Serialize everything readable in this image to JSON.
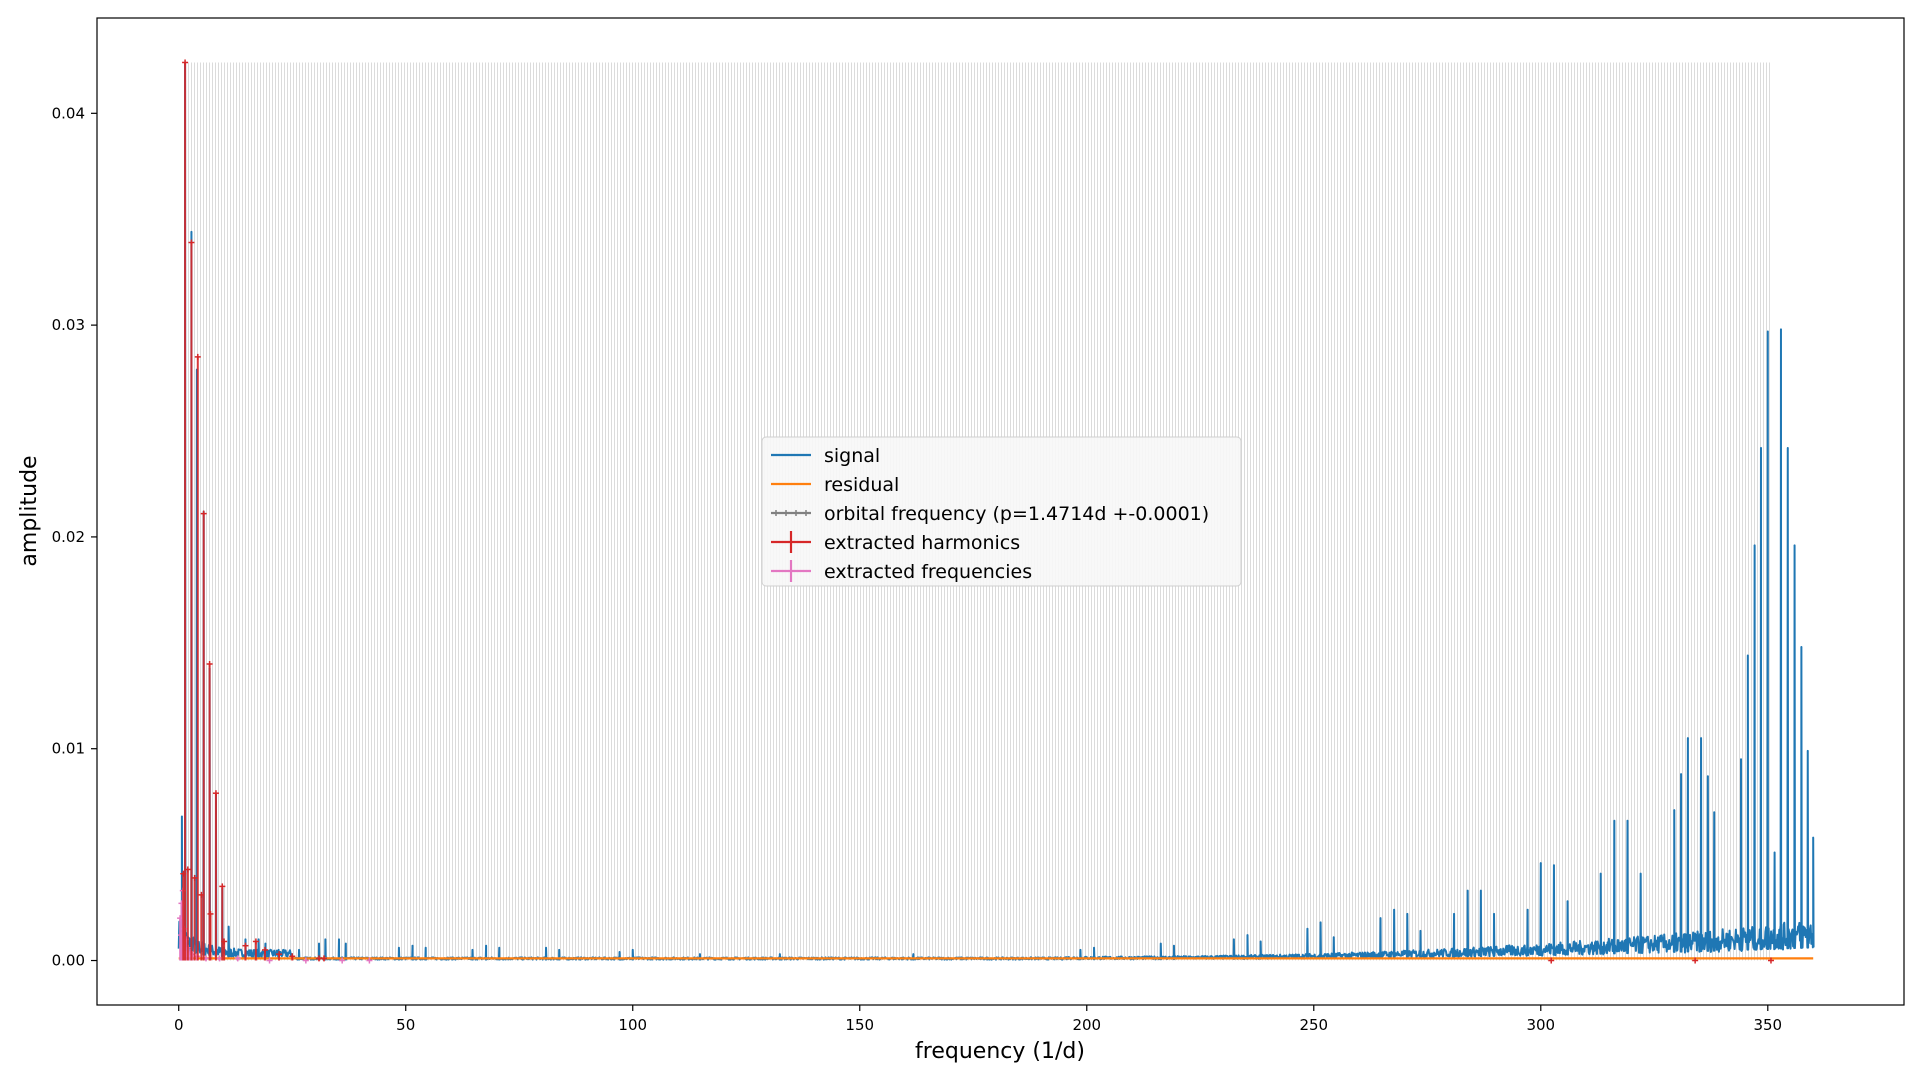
{
  "chart_data": {
    "type": "line",
    "title": "",
    "xlabel": "frequency (1/d)",
    "ylabel": "amplitude",
    "xlim": [
      -18,
      380
    ],
    "ylim": [
      -0.0021,
      0.0445
    ],
    "xticks": [
      0,
      50,
      100,
      150,
      200,
      250,
      300,
      350
    ],
    "yticks": [
      0.0,
      0.01,
      0.02,
      0.03,
      0.04
    ],
    "ytick_labels": [
      "0.00",
      "0.01",
      "0.02",
      "0.03",
      "0.04"
    ],
    "grid": false,
    "legend_position": "center",
    "orbital_band": {
      "x_range": [
        1.5,
        350.7
      ],
      "y_top": 0.0424,
      "color": "#bdbdbd"
    },
    "colors": {
      "signal": "#1f77b4",
      "residual": "#ff7f0e",
      "orbital": "#808080",
      "harmonics": "#d62728",
      "frequencies": "#e377c2"
    },
    "series": [
      {
        "name": "signal",
        "kind": "spectrum",
        "x_range": [
          0,
          360
        ],
        "peaks": [
          [
            0.7,
            0.0068
          ],
          [
            1.4,
            0.0424
          ],
          [
            2.8,
            0.0344
          ],
          [
            4.0,
            0.0279
          ],
          [
            5.5,
            0.0212
          ],
          [
            6.8,
            0.0138
          ],
          [
            8.2,
            0.0079
          ],
          [
            9.6,
            0.0034
          ],
          [
            11.0,
            0.0016
          ],
          [
            14.7,
            0.001
          ],
          [
            17.6,
            0.001
          ],
          [
            19.1,
            0.0008
          ],
          [
            22.0,
            0.0005
          ],
          [
            26.5,
            0.0005
          ],
          [
            30.9,
            0.0008
          ],
          [
            32.3,
            0.001
          ],
          [
            35.3,
            0.001
          ],
          [
            36.8,
            0.0008
          ],
          [
            48.5,
            0.0006
          ],
          [
            51.5,
            0.0007
          ],
          [
            54.4,
            0.0006
          ],
          [
            64.7,
            0.0005
          ],
          [
            67.7,
            0.0007
          ],
          [
            70.6,
            0.0006
          ],
          [
            80.9,
            0.0006
          ],
          [
            83.8,
            0.0005
          ],
          [
            97.1,
            0.0004
          ],
          [
            100.0,
            0.0005
          ],
          [
            114.8,
            0.0003
          ],
          [
            132.4,
            0.0003
          ],
          [
            161.8,
            0.0003
          ],
          [
            198.6,
            0.0005
          ],
          [
            201.6,
            0.0006
          ],
          [
            216.3,
            0.0008
          ],
          [
            219.2,
            0.0007
          ],
          [
            232.4,
            0.001
          ],
          [
            235.4,
            0.0012
          ],
          [
            238.3,
            0.0009
          ],
          [
            248.6,
            0.0015
          ],
          [
            251.5,
            0.0018
          ],
          [
            254.4,
            0.0011
          ],
          [
            264.7,
            0.002
          ],
          [
            267.7,
            0.0024
          ],
          [
            270.6,
            0.0022
          ],
          [
            273.5,
            0.0014
          ],
          [
            280.9,
            0.0022
          ],
          [
            283.9,
            0.0033
          ],
          [
            286.8,
            0.0033
          ],
          [
            289.7,
            0.0022
          ],
          [
            297.1,
            0.0024
          ],
          [
            300.0,
            0.0046
          ],
          [
            302.9,
            0.0045
          ],
          [
            305.9,
            0.0028
          ],
          [
            313.2,
            0.0041
          ],
          [
            316.2,
            0.0066
          ],
          [
            319.1,
            0.0066
          ],
          [
            322.0,
            0.0041
          ],
          [
            329.4,
            0.0071
          ],
          [
            330.9,
            0.0088
          ],
          [
            332.4,
            0.0105
          ],
          [
            335.3,
            0.0105
          ],
          [
            336.8,
            0.0087
          ],
          [
            338.2,
            0.007
          ],
          [
            344.1,
            0.0095
          ],
          [
            345.6,
            0.0144
          ],
          [
            347.1,
            0.0196
          ],
          [
            348.5,
            0.0242
          ],
          [
            350.0,
            0.0297
          ],
          [
            351.5,
            0.0051
          ],
          [
            352.9,
            0.0298
          ],
          [
            354.4,
            0.0242
          ],
          [
            355.9,
            0.0196
          ],
          [
            357.4,
            0.0148
          ],
          [
            358.8,
            0.0099
          ],
          [
            360.0,
            0.0058
          ]
        ]
      },
      {
        "name": "residual",
        "kind": "flat",
        "x_range": [
          0,
          360
        ],
        "level": 0.0001
      },
      {
        "name": "orbital frequency (p=1.4714d +-0.0001)",
        "kind": "band"
      },
      {
        "name": "extracted harmonics",
        "kind": "markers",
        "points": [
          [
            1.4,
            0.0424
          ],
          [
            2.8,
            0.0339
          ],
          [
            4.2,
            0.0285
          ],
          [
            5.5,
            0.0211
          ],
          [
            6.8,
            0.014
          ],
          [
            8.2,
            0.0079
          ],
          [
            9.6,
            0.0035
          ],
          [
            1.0,
            0.0041
          ],
          [
            2.0,
            0.0043
          ],
          [
            3.5,
            0.0039
          ],
          [
            5.0,
            0.0031
          ],
          [
            7.0,
            0.0022
          ],
          [
            10.0,
            0.0009
          ],
          [
            14.7,
            0.0007
          ],
          [
            17.0,
            0.0009
          ],
          [
            19.0,
            0.0005
          ],
          [
            22.1,
            0.0003
          ],
          [
            25.0,
            0.0002
          ],
          [
            30.9,
            0.0001
          ],
          [
            32.0,
            0.0001
          ],
          [
            302.3,
            0.0
          ],
          [
            334.0,
            0.0
          ],
          [
            350.7,
            0.0
          ]
        ]
      },
      {
        "name": "extracted frequencies",
        "kind": "markers",
        "points": [
          [
            0.3,
            0.002
          ],
          [
            0.6,
            0.0027
          ],
          [
            0.9,
            0.0033
          ],
          [
            0.5,
            0.0012
          ],
          [
            1.2,
            0.0015
          ],
          [
            1.6,
            0.001
          ],
          [
            0.8,
            0.0007
          ],
          [
            2.1,
            0.0006
          ],
          [
            2.5,
            0.0004
          ],
          [
            3.0,
            0.0003
          ],
          [
            4.0,
            0.0002
          ],
          [
            6.0,
            0.0001
          ],
          [
            9.0,
            0.0001
          ],
          [
            13.0,
            0.0001
          ],
          [
            20.0,
            0.0
          ],
          [
            28.0,
            0.0
          ],
          [
            36.0,
            0.0
          ],
          [
            42.0,
            0.0
          ]
        ]
      }
    ]
  }
}
